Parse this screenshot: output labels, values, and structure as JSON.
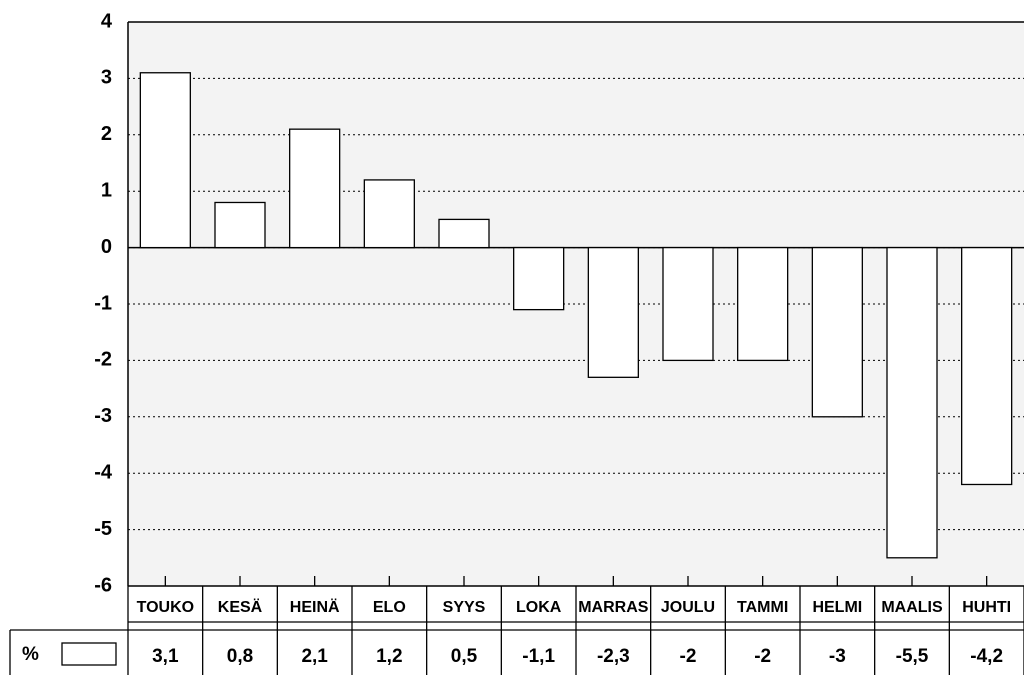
{
  "chart_data": {
    "type": "bar",
    "categories": [
      "TOUKO",
      "KESÄ",
      "HEINÄ",
      "ELO",
      "SYYS",
      "LOKA",
      "MARRAS",
      "JOULU",
      "TAMMI",
      "HELMI",
      "MAALIS",
      "HUHTI"
    ],
    "series": [
      {
        "name": "%",
        "color": "#ffffff",
        "values": [
          3.1,
          0.8,
          2.1,
          1.2,
          0.5,
          -1.1,
          -2.3,
          -2,
          -2,
          -3,
          -5.5,
          -4.2
        ],
        "value_labels": [
          "3,1",
          "0,8",
          "2,1",
          "1,2",
          "0,5",
          "-1,1",
          "-2,3",
          "-2",
          "-2",
          "-3",
          "-5,5",
          "-4,2"
        ]
      }
    ],
    "ylim": [
      -6,
      4
    ],
    "yticks": [
      -6,
      -5,
      -4,
      -3,
      -2,
      -1,
      0,
      1,
      2,
      3,
      4
    ],
    "grid": true
  }
}
